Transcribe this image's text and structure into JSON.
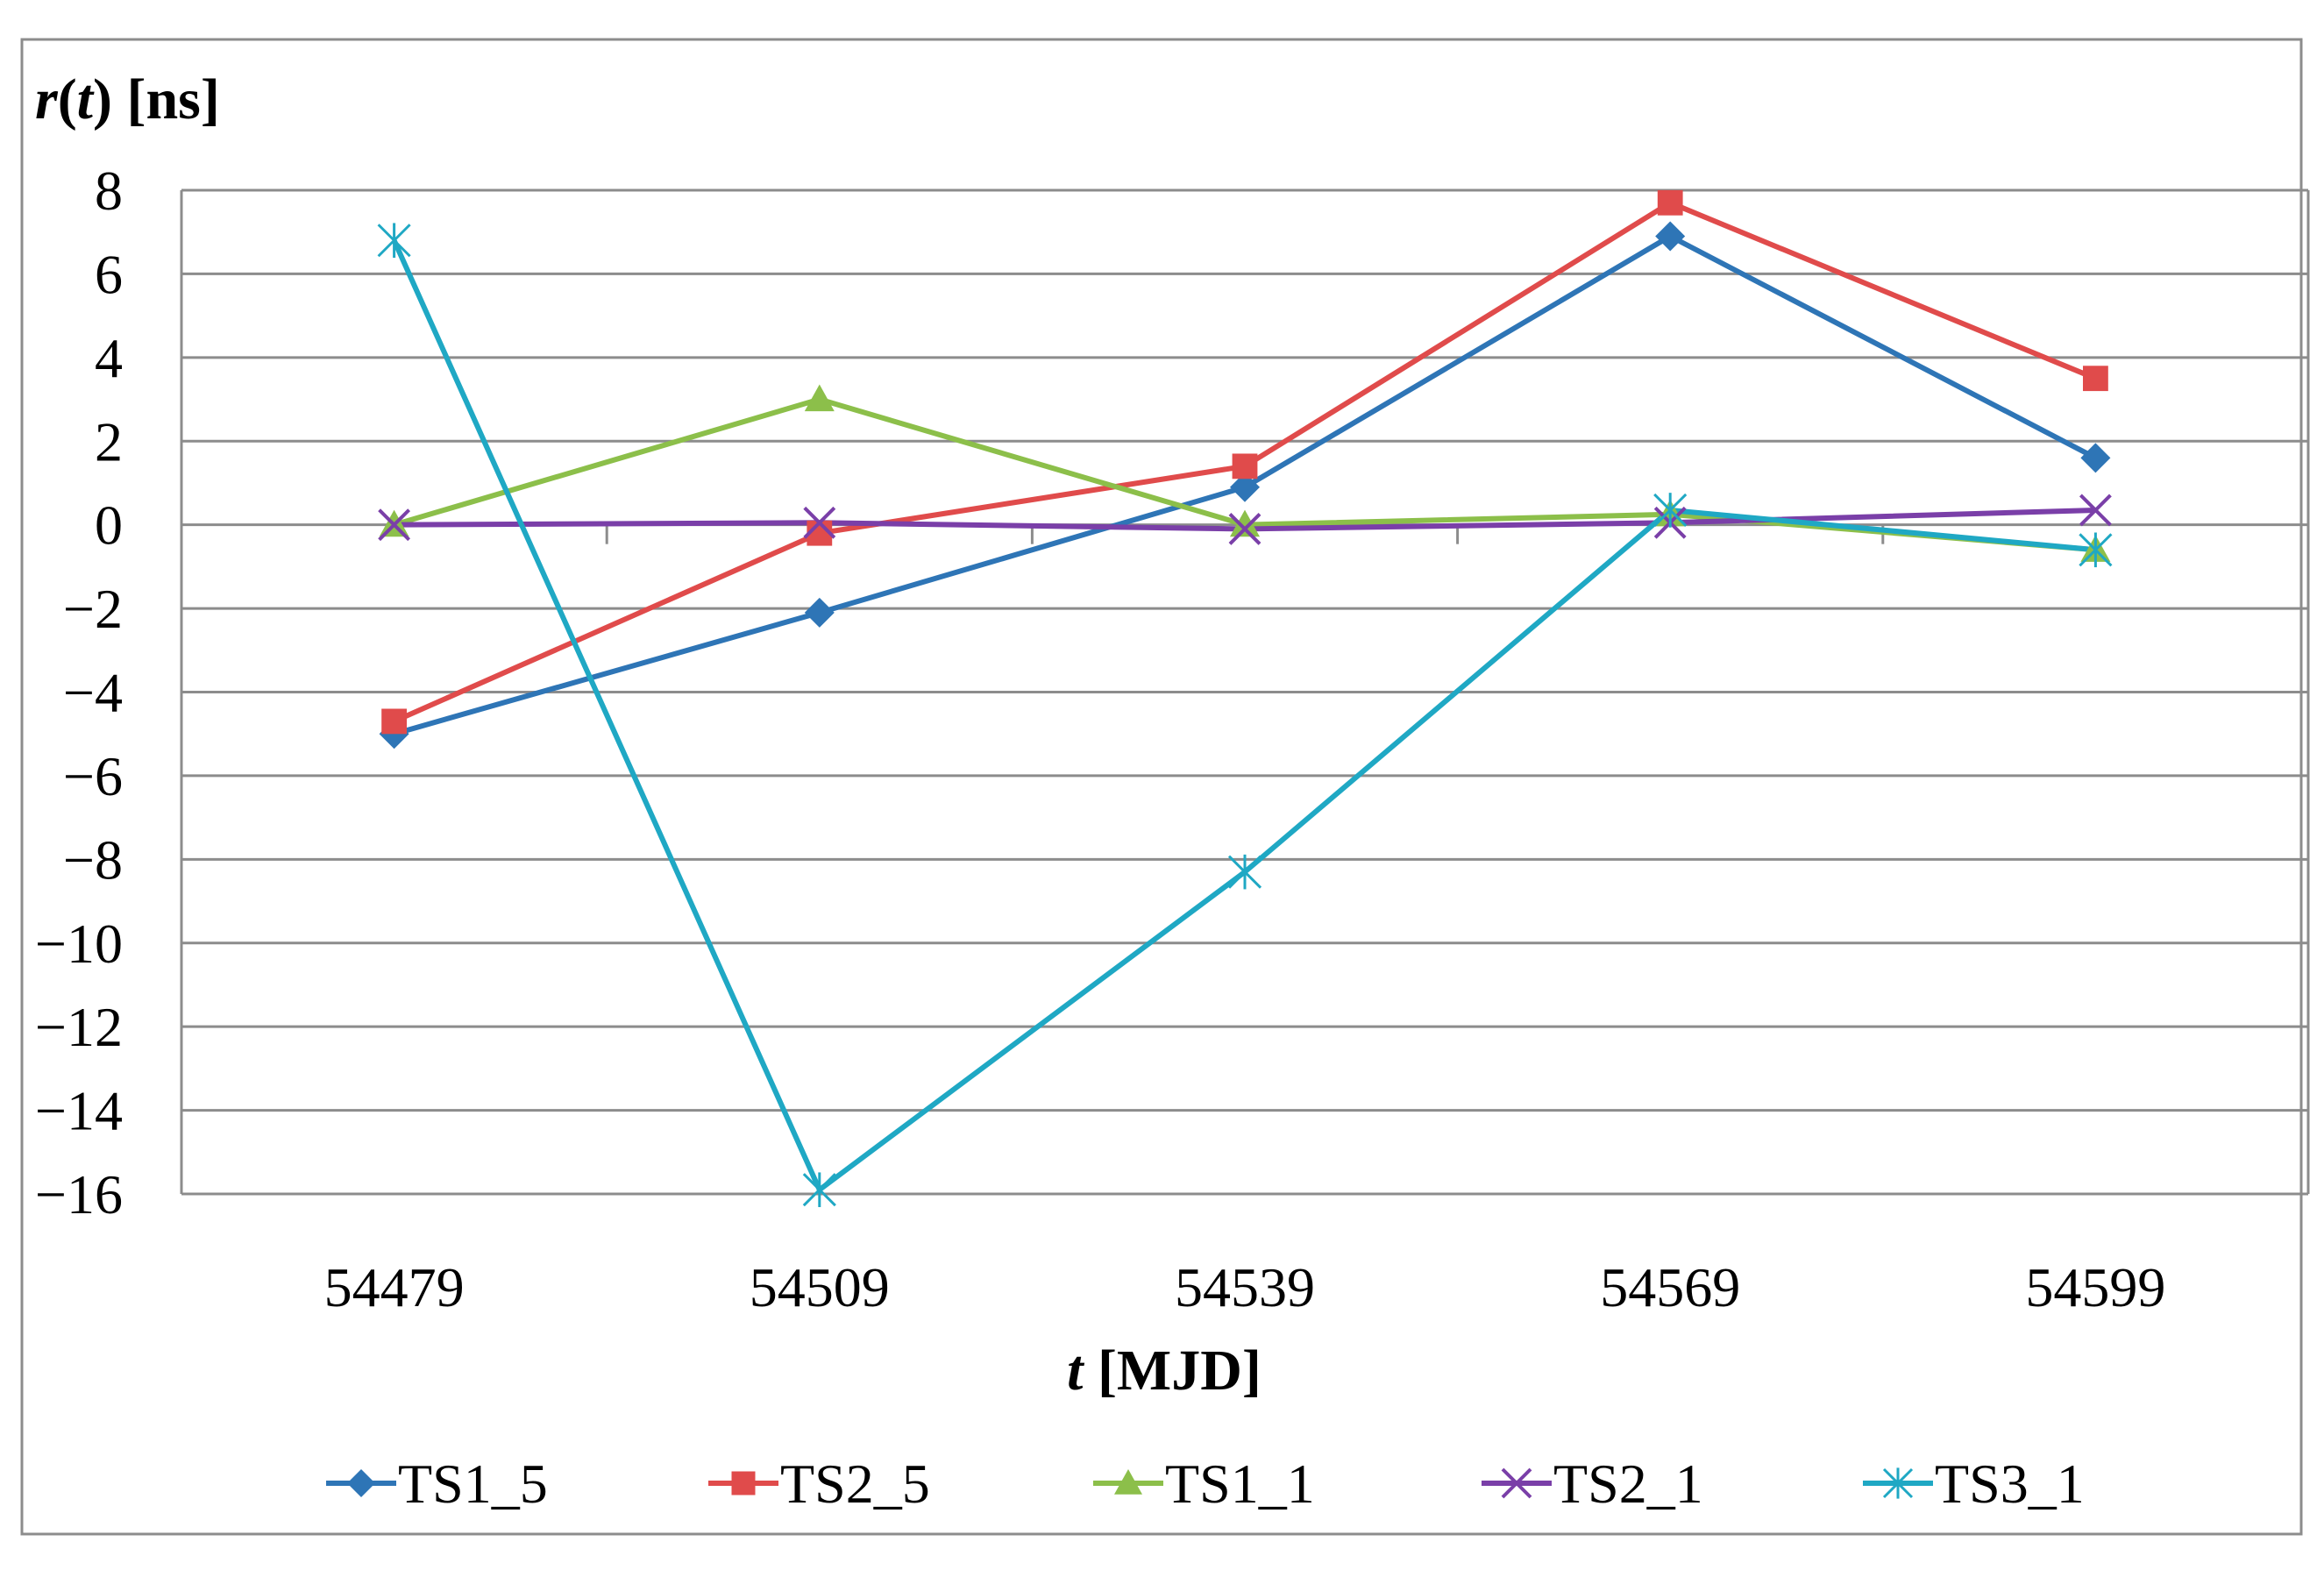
{
  "chart_data": {
    "type": "line",
    "ylabel_var": "r",
    "ylabel_arg": "t",
    "ylabel_unit": "[ns]",
    "xlabel_var": "t",
    "xlabel_unit": "[MJD]",
    "categories": [
      "54479",
      "54509",
      "54539",
      "54569",
      "54599"
    ],
    "ylim": [
      -16,
      8
    ],
    "yticks": [
      8,
      6,
      4,
      2,
      0,
      -2,
      -4,
      -6,
      -8,
      -10,
      -12,
      -14,
      -16
    ],
    "ytick_labels": [
      "8",
      "6",
      "4",
      "2",
      "0",
      "−2",
      "−4",
      "−6",
      "−8",
      "−10",
      "−12",
      "−14",
      "−16"
    ],
    "grid": true,
    "legend_position": "bottom",
    "series": [
      {
        "name": "TS1_5",
        "color": "#2E75B6",
        "marker": "diamond",
        "values": [
          -5.0,
          -2.1,
          0.9,
          6.9,
          1.6
        ]
      },
      {
        "name": "TS2_5",
        "color": "#E04B4B",
        "marker": "square",
        "values": [
          -4.7,
          -0.2,
          1.4,
          7.7,
          3.5
        ]
      },
      {
        "name": "TS1_1",
        "color": "#8CBF4A",
        "marker": "triangle",
        "values": [
          0.0,
          3.0,
          0.0,
          0.25,
          -0.6
        ]
      },
      {
        "name": "TS2_1",
        "color": "#7A3FA8",
        "marker": "x",
        "values": [
          0.0,
          0.05,
          -0.1,
          0.05,
          0.35
        ]
      },
      {
        "name": "TS3_1",
        "color": "#1FA8C4",
        "marker": "star",
        "values": [
          6.8,
          -15.9,
          -8.3,
          0.35,
          -0.6
        ]
      }
    ]
  }
}
